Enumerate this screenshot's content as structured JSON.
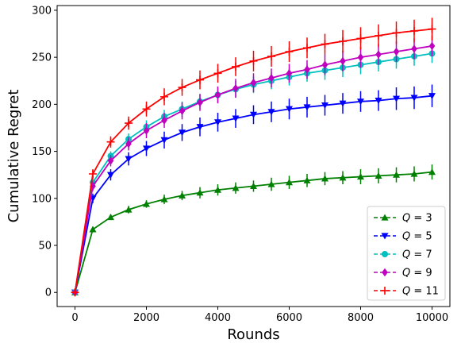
{
  "chart_data": {
    "type": "line",
    "title": "",
    "xlabel": "Rounds",
    "ylabel": "Cumulative Regret",
    "xlim": [
      -500,
      10500
    ],
    "ylim": [
      -15,
      305
    ],
    "xticks": [
      0,
      2000,
      4000,
      6000,
      8000,
      10000
    ],
    "yticks": [
      0,
      50,
      100,
      150,
      200,
      250,
      300
    ],
    "grid": false,
    "legend_position": "lower-right",
    "x": [
      0,
      500,
      1000,
      1500,
      2000,
      2500,
      3000,
      3500,
      4000,
      4500,
      5000,
      5500,
      6000,
      6500,
      7000,
      7500,
      8000,
      8500,
      9000,
      9500,
      10000
    ],
    "series": [
      {
        "name": "Q = 3",
        "color": "#008000",
        "marker": "triangle-up",
        "values": [
          0,
          67,
          80,
          88,
          94,
          99,
          103,
          106,
          109,
          111,
          113,
          115,
          117,
          119,
          121,
          122,
          123,
          124,
          125,
          126,
          128
        ],
        "errors": [
          0,
          2,
          3,
          4,
          4,
          5,
          5,
          6,
          6,
          6,
          6,
          7,
          7,
          7,
          7,
          7,
          8,
          8,
          8,
          8,
          8
        ]
      },
      {
        "name": "Q = 5",
        "color": "#0000ff",
        "marker": "triangle-down",
        "values": [
          0,
          100,
          125,
          142,
          153,
          162,
          170,
          176,
          181,
          185,
          189,
          192,
          195,
          197,
          199,
          201,
          203,
          204,
          206,
          207,
          209
        ],
        "errors": [
          0,
          5,
          6,
          7,
          8,
          9,
          9,
          10,
          10,
          10,
          10,
          11,
          11,
          11,
          11,
          11,
          11,
          11,
          12,
          12,
          12
        ]
      },
      {
        "name": "Q = 7",
        "color": "#00bfbf",
        "marker": "circle",
        "values": [
          0,
          117,
          145,
          163,
          176,
          187,
          195,
          203,
          210,
          216,
          221,
          225,
          229,
          233,
          236,
          239,
          242,
          245,
          248,
          251,
          254
        ],
        "errors": [
          0,
          4,
          5,
          6,
          7,
          7,
          8,
          8,
          8,
          9,
          9,
          9,
          9,
          9,
          10,
          10,
          10,
          10,
          10,
          10,
          10
        ]
      },
      {
        "name": "Q = 9",
        "color": "#bf00bf",
        "marker": "diamond",
        "values": [
          0,
          113,
          140,
          158,
          172,
          183,
          193,
          202,
          210,
          217,
          223,
          228,
          233,
          237,
          242,
          246,
          250,
          253,
          256,
          259,
          262
        ],
        "errors": [
          0,
          5,
          6,
          7,
          8,
          8,
          9,
          9,
          9,
          10,
          10,
          10,
          10,
          10,
          11,
          11,
          11,
          11,
          11,
          11,
          11
        ]
      },
      {
        "name": "Q = 11",
        "color": "#ff0000",
        "marker": "plus",
        "values": [
          0,
          126,
          160,
          180,
          195,
          208,
          218,
          226,
          233,
          240,
          246,
          251,
          256,
          260,
          264,
          267,
          270,
          273,
          276,
          278,
          280
        ],
        "errors": [
          0,
          5,
          6,
          7,
          8,
          9,
          9,
          10,
          10,
          10,
          11,
          11,
          11,
          11,
          11,
          12,
          12,
          12,
          12,
          12,
          12
        ]
      }
    ]
  }
}
